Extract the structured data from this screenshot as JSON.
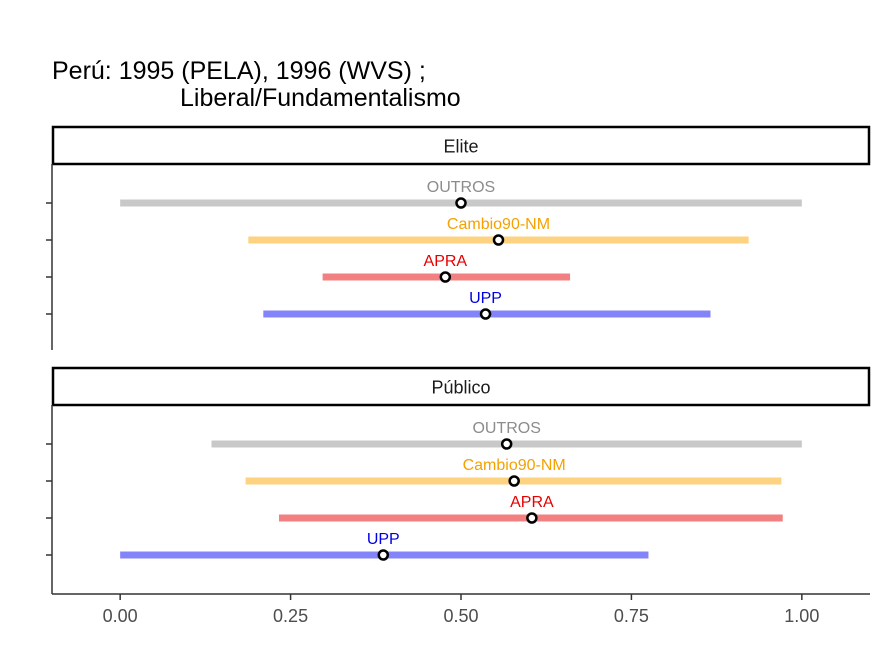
{
  "chart_data": {
    "type": "interval-dot",
    "title_lines": [
      "Perú: 1995 (PELA), 1996 (WVS) ;",
      "Liberal/Fundamentalismo"
    ],
    "xlim": [
      -0.1,
      1.1
    ],
    "x_ticks": [
      0,
      0.25,
      0.5,
      0.75,
      1.0
    ],
    "x_tick_labels": [
      "0.00",
      "0.25",
      "0.50",
      "0.75",
      "1.00"
    ],
    "panels": [
      {
        "strip": "Elite",
        "series": [
          {
            "label": "OUTROS",
            "low": 0.0,
            "high": 1.0,
            "point": 0.5,
            "line_color": "#c8c8c8",
            "text_color": "#8c8c8c"
          },
          {
            "label": "Cambio90-NM",
            "low": 0.188,
            "high": 0.922,
            "point": 0.555,
            "line_color": "#fdd281",
            "text_color": "#f5a100"
          },
          {
            "label": "APRA",
            "low": 0.297,
            "high": 0.66,
            "point": 0.477,
            "line_color": "#f28080",
            "text_color": "#e60000"
          },
          {
            "label": "UPP",
            "low": 0.21,
            "high": 0.866,
            "point": 0.536,
            "line_color": "#8484fa",
            "text_color": "#0000e0"
          }
        ]
      },
      {
        "strip": "Público",
        "series": [
          {
            "label": "OUTROS",
            "low": 0.134,
            "high": 1.0,
            "point": 0.567,
            "line_color": "#c8c8c8",
            "text_color": "#8c8c8c"
          },
          {
            "label": "Cambio90-NM",
            "low": 0.184,
            "high": 0.97,
            "point": 0.578,
            "line_color": "#fdd281",
            "text_color": "#f5a100"
          },
          {
            "label": "APRA",
            "low": 0.233,
            "high": 0.972,
            "point": 0.604,
            "line_color": "#f28080",
            "text_color": "#e60000"
          },
          {
            "label": "UPP",
            "low": 0.0,
            "high": 0.775,
            "point": 0.386,
            "line_color": "#8484fa",
            "text_color": "#0000e0"
          }
        ]
      }
    ]
  }
}
